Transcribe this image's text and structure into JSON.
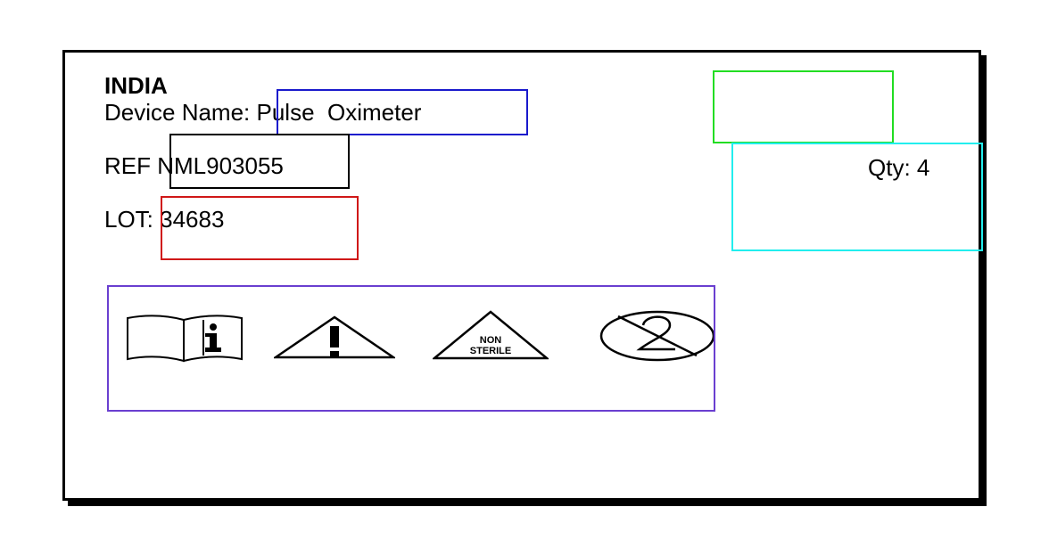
{
  "label": {
    "country": "INDIA",
    "device_name_line": "Device Name: Pulse  Oximeter",
    "ref_line": "REF NML903055",
    "lot_line": "LOT: 34683",
    "qty_line": "Qty: 4"
  },
  "symbols": {
    "non_sterile_line1": "NON",
    "non_sterile_line2": "STERILE",
    "icons": [
      "consult-instructions-icon",
      "caution-icon",
      "non-sterile-icon",
      "do-not-reuse-icon"
    ]
  },
  "annotation_colors": {
    "device_name": "#1a1acc",
    "ref": "#000000",
    "lot": "#d01818",
    "blank_top_right": "#22dd22",
    "qty": "#22eeee",
    "symbols": "#6a3fd0"
  }
}
